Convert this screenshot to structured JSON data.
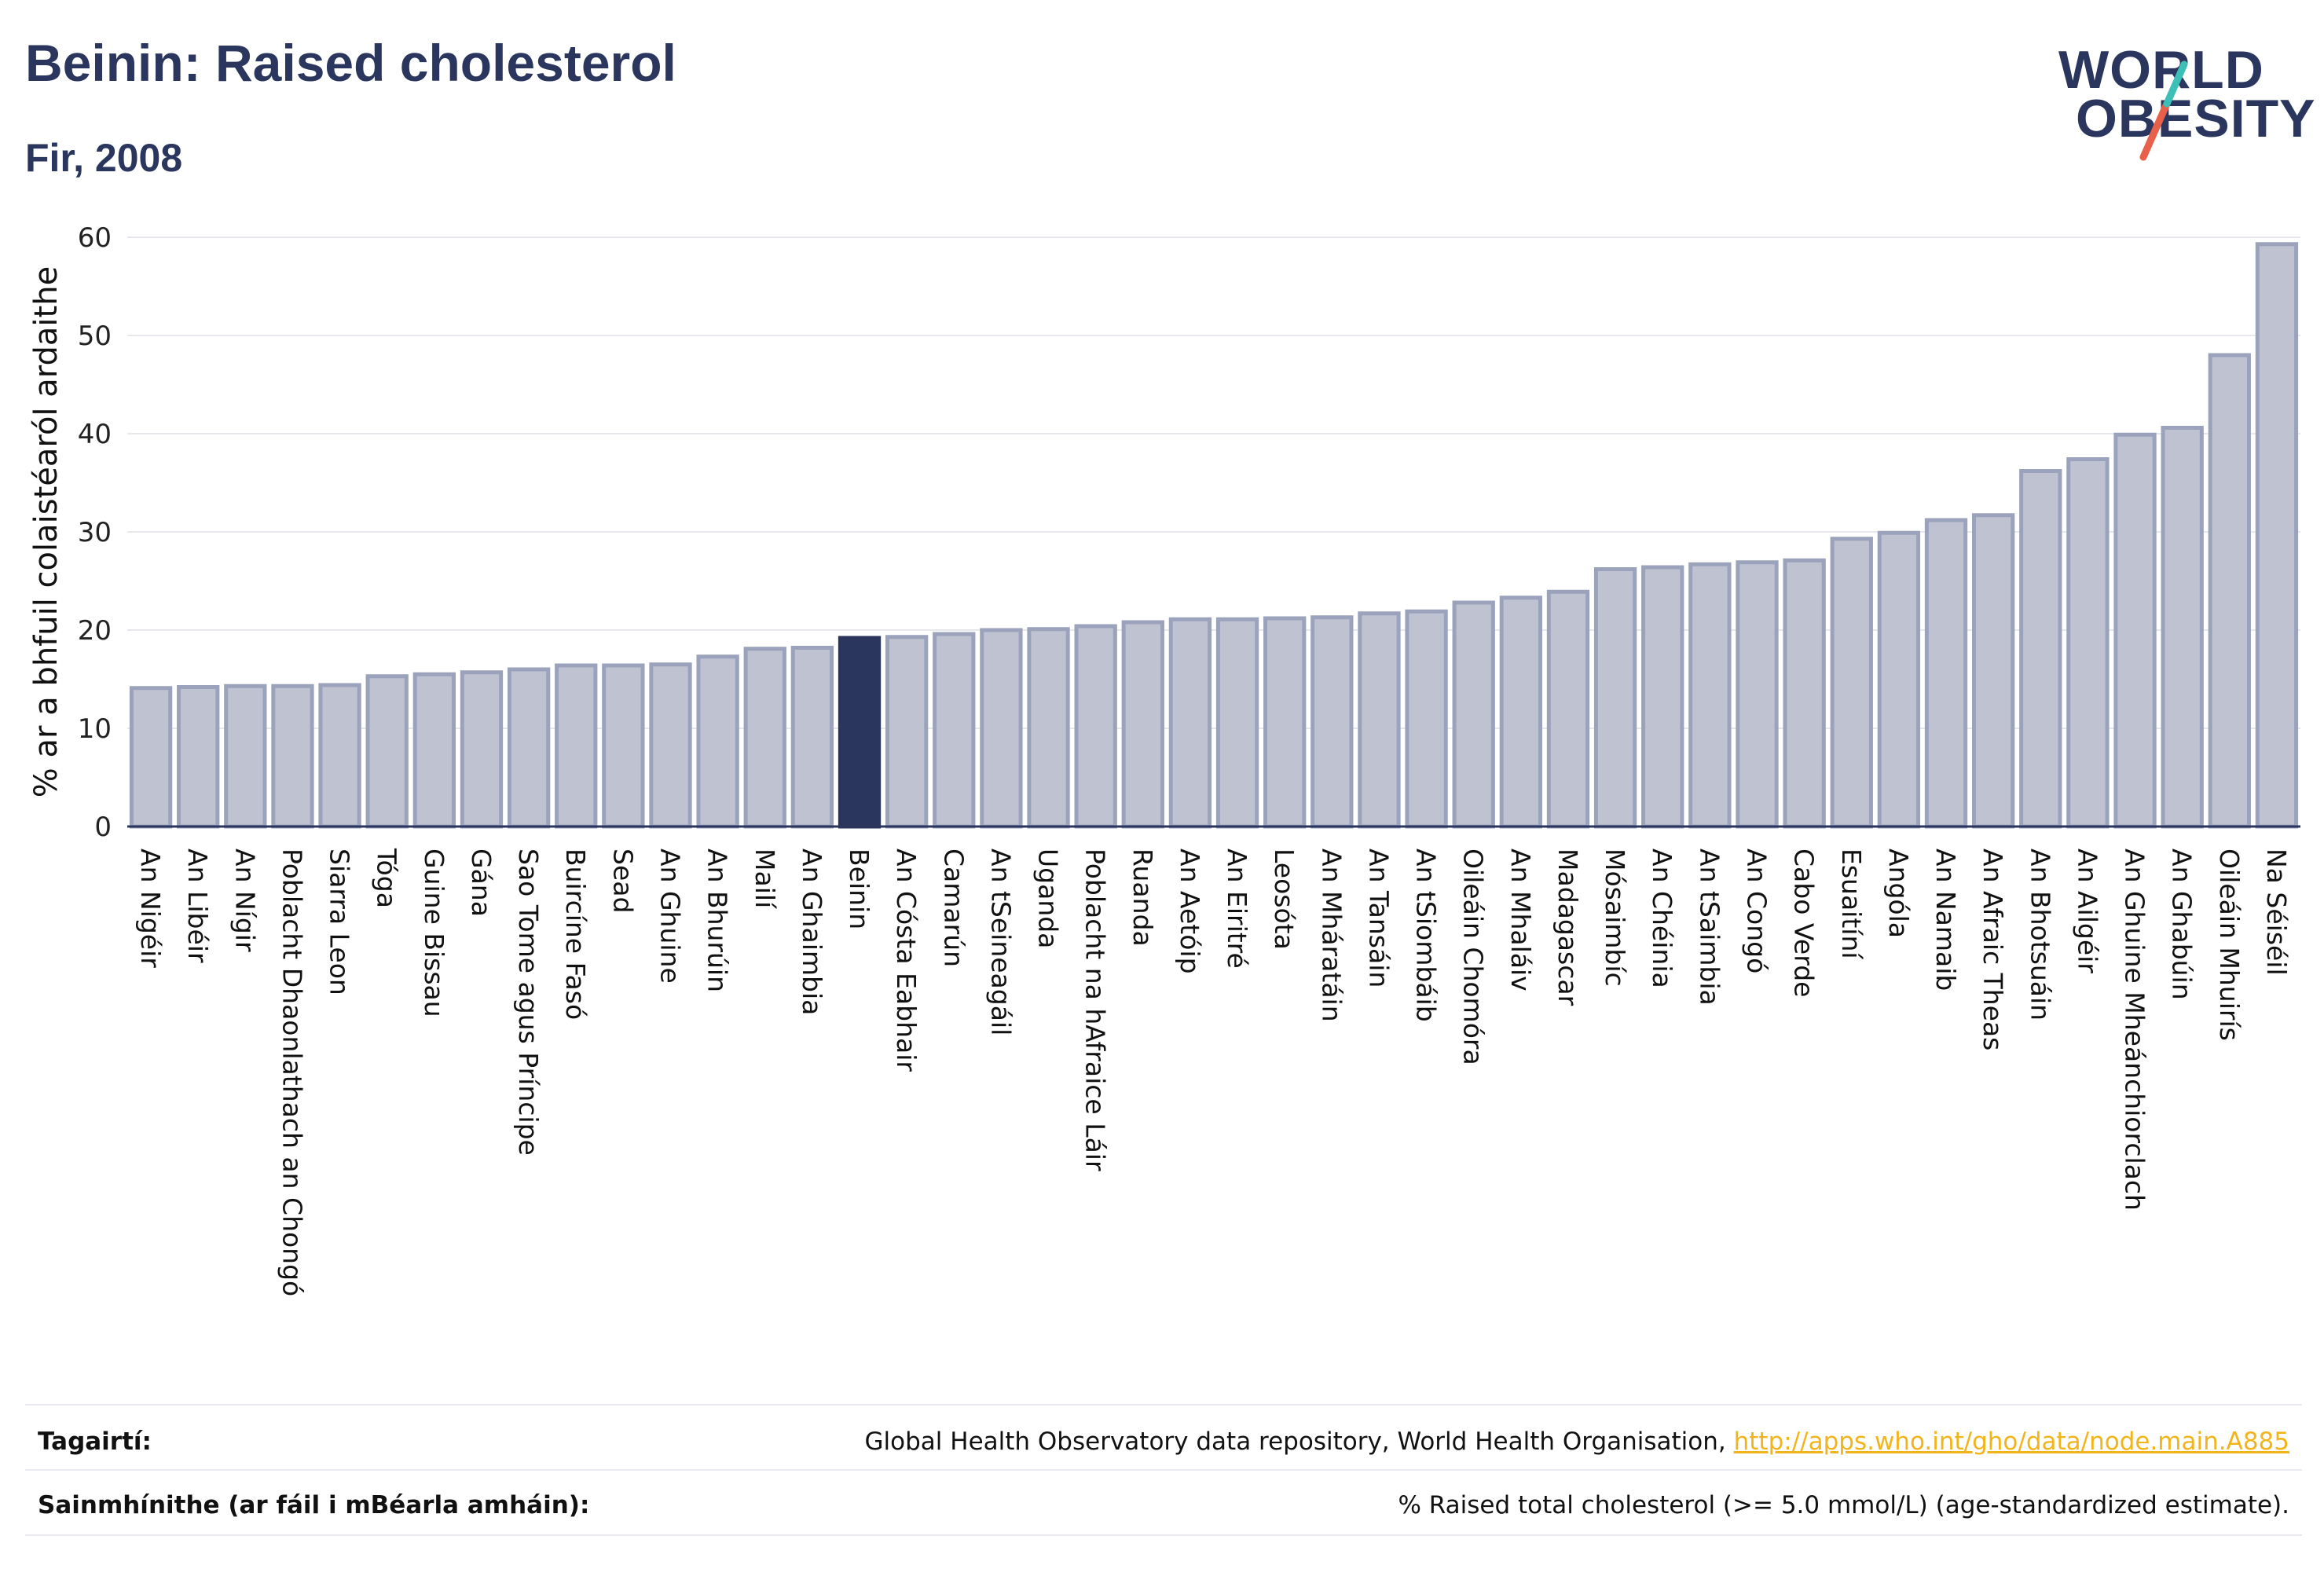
{
  "title": "Beinin: Raised cholesterol",
  "subtitle": "Fir, 2008",
  "logo": {
    "line1": "WORLD",
    "line2": "OBESITY"
  },
  "colors": {
    "highlight": "#2b365e",
    "bar": "#bfc3d1",
    "bar_stroke": "#9ba2bb",
    "accent_red": "#e8604a",
    "accent_teal": "#3bbfb7"
  },
  "chart_data": {
    "type": "bar",
    "ylabel": "% ar a bhfuil colaistéaról ardaithe",
    "ylim": [
      0,
      60
    ],
    "yticks": [
      "0",
      "10",
      "20",
      "30",
      "40",
      "50",
      "60"
    ],
    "grid": true,
    "highlight": "Beinin",
    "categories": [
      "An Nigéir",
      "An Libéir",
      "An Nígir",
      "Poblacht Dhaonlathach an Chongó",
      "Siarra Leon",
      "Tóga",
      "Guine Bissau",
      "Gána",
      "Sao Tome agus Príncipe",
      "Buircíne Fasó",
      "Sead",
      "An Ghuine",
      "An Bhurúin",
      "Mailí",
      "An Ghaimbia",
      "Beinin",
      "An Cósta Eabhair",
      "Camarún",
      "An tSeineagáil",
      "Uganda",
      "Poblacht na hAfraice Láir",
      "Ruanda",
      "An Aetóip",
      "An Eiritré",
      "Leosóta",
      "An Mháratáin",
      "An Tansáin",
      "An tSiombáib",
      "Oileáin Chomóra",
      "An Mhaláiv",
      "Madagascar",
      "Mósaimbíc",
      "An Chéinia",
      "An tSaimbia",
      "An Congó",
      "Cabo Verde",
      "Esuaitíní",
      "Angóla",
      "An Namaib",
      "An Afraic Theas",
      "An Bhotsuáin",
      "An Ailgéir",
      "An Ghuine Mheánchiorclach",
      "An Ghabúin",
      "Oileáin Mhuirís",
      "Na Séiséil"
    ],
    "values": [
      14.1,
      14.2,
      14.3,
      14.3,
      14.4,
      15.3,
      15.5,
      15.7,
      16.0,
      16.4,
      16.4,
      16.5,
      17.3,
      18.1,
      18.2,
      19.2,
      19.3,
      19.6,
      20.0,
      20.1,
      20.4,
      20.8,
      21.1,
      21.1,
      21.2,
      21.3,
      21.7,
      21.9,
      22.8,
      23.3,
      23.9,
      26.2,
      26.4,
      26.7,
      26.9,
      27.1,
      29.3,
      29.9,
      31.2,
      31.7,
      36.2,
      37.4,
      39.9,
      40.6,
      48.0,
      59.3
    ]
  },
  "footer": {
    "references_label": "Tagairtí:",
    "references_text": "Global Health Observatory data repository, World Health Organisation, ",
    "references_link": "http://apps.who.int/gho/data/node.main.A885",
    "definitions_label": "Sainmhínithe (ar fáil i mBéarla amháin):",
    "definitions_text": "% Raised total cholesterol (>= 5.0 mmol/L) (age-standardized estimate)."
  }
}
